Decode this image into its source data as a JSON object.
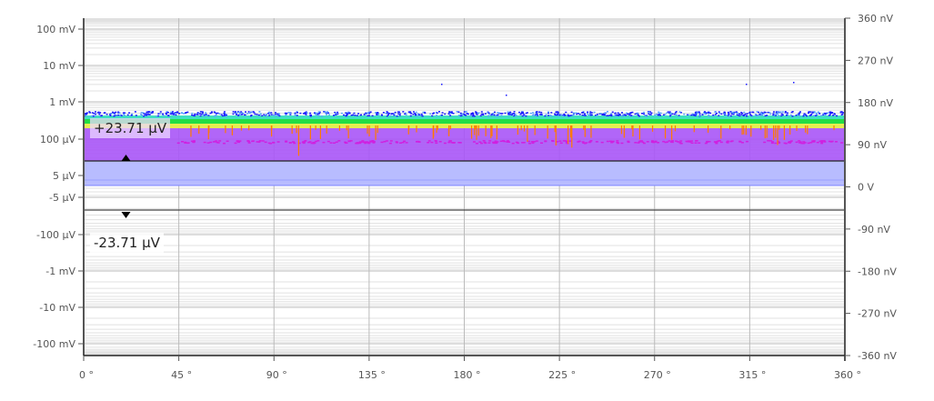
{
  "chart_data": {
    "type": "scatter",
    "title": "",
    "x_axis": {
      "range": [
        0,
        360
      ],
      "unit": "°",
      "tick_labels": [
        "0 °",
        "45 °",
        "90 °",
        "135 °",
        "180 °",
        "225 °",
        "270 °",
        "315 °",
        "360 °"
      ]
    },
    "y_axis_left": {
      "scale": "symmetric-log",
      "tick_labels": [
        "100 mV",
        "10 mV",
        "1 mV",
        "100 µV",
        "5 µV",
        "-5 µV",
        "-100 µV",
        "-1 mV",
        "-10 mV",
        "-100 mV"
      ]
    },
    "y_axis_right": {
      "scale": "linear",
      "range": [
        -360,
        360
      ],
      "unit": "nV",
      "tick_labels": [
        "360 nV",
        "270 nV",
        "180 nV",
        "90 nV",
        "0 V",
        "-90 nV",
        "-180 nV",
        "-270 nV",
        "-360 nV"
      ]
    },
    "thresholds": {
      "positive": "+23.71 µV",
      "negative": "-23.71 µV",
      "marker_phase_deg": 20
    },
    "density_bands": [
      {
        "color": "#1a1aff",
        "level": "sparse",
        "approx": "~500 µV"
      },
      {
        "color": "#33e0a0",
        "level": "low"
      },
      {
        "color": "#22dd22",
        "level": "medium"
      },
      {
        "color": "#eeee33",
        "level": "high"
      },
      {
        "color": "#a855f7",
        "level": "dense",
        "approx": "23.71 µV – 300 µV"
      },
      {
        "color": "#b8bcff",
        "level": "below threshold"
      }
    ],
    "spike_color": "#ff7a00",
    "grid": true,
    "legend": "none"
  }
}
